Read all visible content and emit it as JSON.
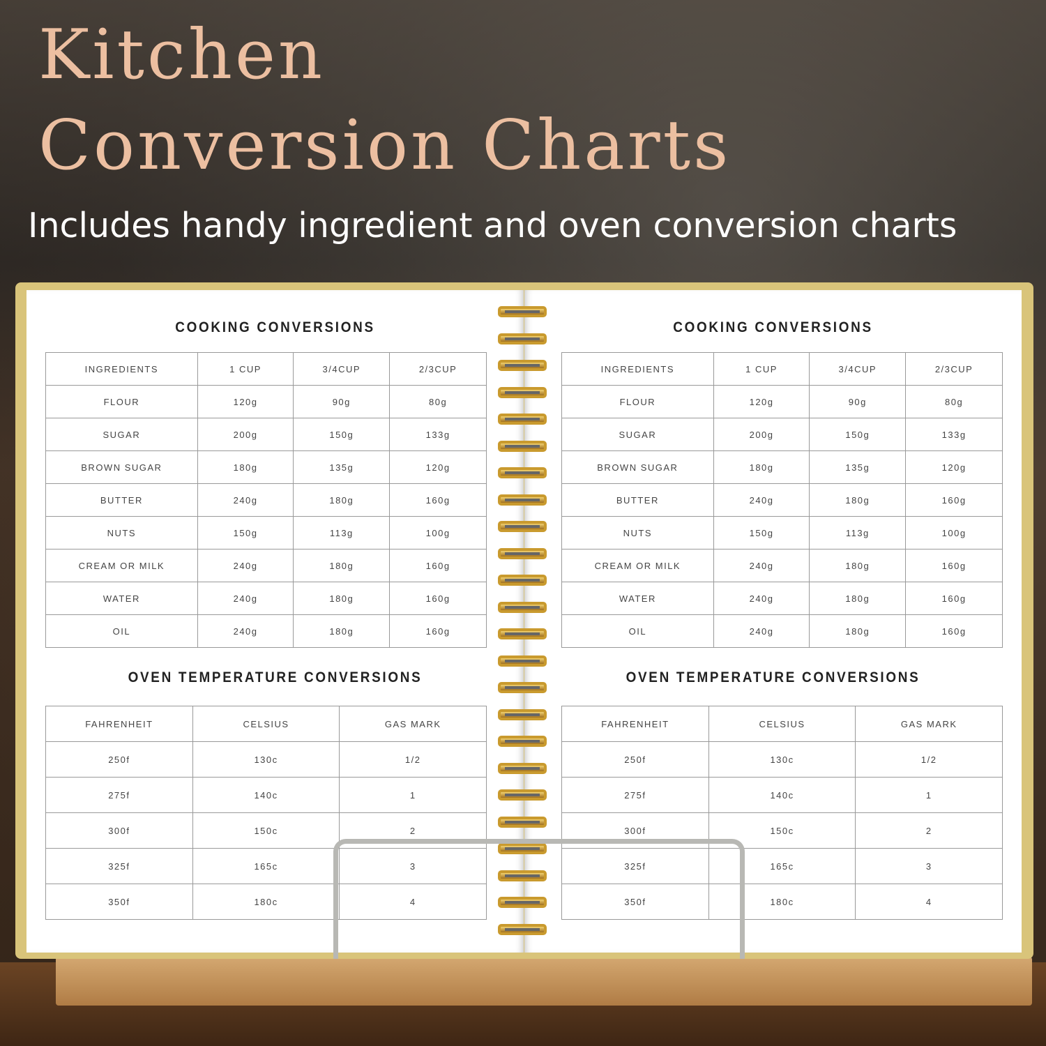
{
  "header": {
    "title_line1": "Kitchen",
    "title_line2": "Conversion Charts",
    "subtitle": "Includes handy ingredient and oven conversion charts"
  },
  "colors": {
    "title": "#ecbfa1",
    "cover_accent": "#d9c47a",
    "spiral": "#c99a2e"
  },
  "pages": [
    {
      "cooking": {
        "title": "COOKING CONVERSIONS",
        "headers": [
          "INGREDIENTS",
          "1 CUP",
          "3/4CUP",
          "2/3CUP"
        ],
        "rows": [
          [
            "FLOUR",
            "120g",
            "90g",
            "80g"
          ],
          [
            "SUGAR",
            "200g",
            "150g",
            "133g"
          ],
          [
            "BROWN SUGAR",
            "180g",
            "135g",
            "120g"
          ],
          [
            "BUTTER",
            "240g",
            "180g",
            "160g"
          ],
          [
            "NUTS",
            "150g",
            "113g",
            "100g"
          ],
          [
            "CREAM OR MILK",
            "240g",
            "180g",
            "160g"
          ],
          [
            "WATER",
            "240g",
            "180g",
            "160g"
          ],
          [
            "OIL",
            "240g",
            "180g",
            "160g"
          ]
        ]
      },
      "oven": {
        "title": "OVEN TEMPERATURE CONVERSIONS",
        "headers": [
          "FAHRENHEIT",
          "CELSIUS",
          "GAS MARK"
        ],
        "rows": [
          [
            "250f",
            "130c",
            "1/2"
          ],
          [
            "275f",
            "140c",
            "1"
          ],
          [
            "300f",
            "150c",
            "2"
          ],
          [
            "325f",
            "165c",
            "3"
          ],
          [
            "350f",
            "180c",
            "4"
          ]
        ]
      }
    },
    {
      "cooking": {
        "title": "COOKING CONVERSIONS",
        "headers": [
          "INGREDIENTS",
          "1 CUP",
          "3/4CUP",
          "2/3CUP"
        ],
        "rows": [
          [
            "FLOUR",
            "120g",
            "90g",
            "80g"
          ],
          [
            "SUGAR",
            "200g",
            "150g",
            "133g"
          ],
          [
            "BROWN SUGAR",
            "180g",
            "135g",
            "120g"
          ],
          [
            "BUTTER",
            "240g",
            "180g",
            "160g"
          ],
          [
            "NUTS",
            "150g",
            "113g",
            "100g"
          ],
          [
            "CREAM OR MILK",
            "240g",
            "180g",
            "160g"
          ],
          [
            "WATER",
            "240g",
            "180g",
            "160g"
          ],
          [
            "OIL",
            "240g",
            "180g",
            "160g"
          ]
        ]
      },
      "oven": {
        "title": "OVEN TEMPERATURE CONVERSIONS",
        "headers": [
          "FAHRENHEIT",
          "CELSIUS",
          "GAS MARK"
        ],
        "rows": [
          [
            "250f",
            "130c",
            "1/2"
          ],
          [
            "275f",
            "140c",
            "1"
          ],
          [
            "300f",
            "150c",
            "2"
          ],
          [
            "325f",
            "165c",
            "3"
          ],
          [
            "350f",
            "180c",
            "4"
          ]
        ]
      }
    }
  ]
}
